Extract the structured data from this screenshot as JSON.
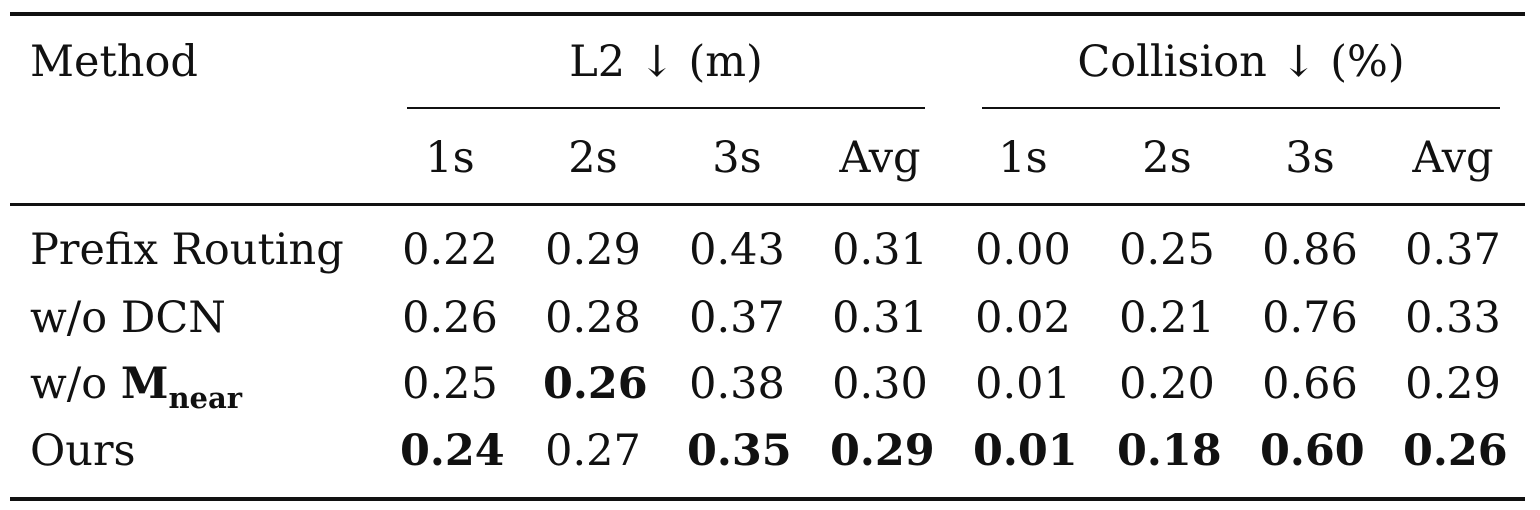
{
  "table": {
    "header": {
      "method": "Method",
      "group_l2": "L2 ↓ (m)",
      "group_collision": "Collision ↓ (%)",
      "sub_columns": [
        "1s",
        "2s",
        "3s",
        "Avg",
        "1s",
        "2s",
        "3s",
        "Avg"
      ]
    },
    "rows": [
      {
        "method": "Prefix Routing",
        "values": [
          "0.22",
          "0.29",
          "0.43",
          "0.31",
          "0.00",
          "0.25",
          "0.86",
          "0.37"
        ],
        "bold": [
          false,
          false,
          false,
          false,
          false,
          false,
          false,
          false
        ]
      },
      {
        "method": "w/o DCN",
        "values": [
          "0.26",
          "0.28",
          "0.37",
          "0.31",
          "0.02",
          "0.21",
          "0.76",
          "0.33"
        ],
        "bold": [
          false,
          false,
          false,
          false,
          false,
          false,
          false,
          false
        ]
      },
      {
        "method_prefix": "w/o ",
        "method_main": "M",
        "method_sub": "near",
        "values": [
          "0.25",
          "0.26",
          "0.38",
          "0.30",
          "0.01",
          "0.20",
          "0.66",
          "0.29"
        ],
        "bold": [
          false,
          true,
          false,
          false,
          false,
          false,
          false,
          false
        ]
      },
      {
        "method": "Ours",
        "values": [
          "0.24",
          "0.27",
          "0.35",
          "0.29",
          "0.01",
          "0.18",
          "0.60",
          "0.26"
        ],
        "bold": [
          true,
          false,
          true,
          true,
          true,
          true,
          true,
          true
        ]
      }
    ]
  }
}
